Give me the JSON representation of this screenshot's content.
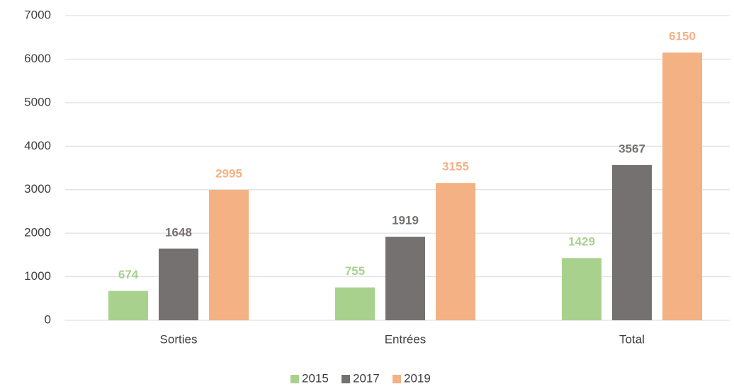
{
  "chart_data": {
    "type": "bar",
    "categories": [
      "Sorties",
      "Entrées",
      "Total"
    ],
    "series": [
      {
        "name": "2015",
        "color": "#a9d18e",
        "values": [
          674,
          755,
          1429
        ]
      },
      {
        "name": "2017",
        "color": "#767171",
        "values": [
          1648,
          1919,
          3567
        ]
      },
      {
        "name": "2019",
        "color": "#f4b183",
        "values": [
          2995,
          3155,
          6150
        ]
      }
    ],
    "ylim": [
      0,
      7000
    ],
    "yticks": [
      0,
      1000,
      2000,
      3000,
      4000,
      5000,
      6000,
      7000
    ],
    "grid": true,
    "legend": "bottom"
  }
}
